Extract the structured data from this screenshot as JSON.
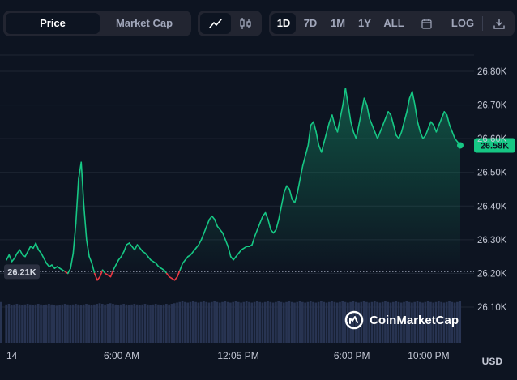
{
  "toolbar": {
    "metric_tabs": [
      {
        "label": "Price",
        "active": true
      },
      {
        "label": "Market Cap",
        "active": false
      }
    ],
    "chart_type_icons": [
      "line-chart-icon",
      "candlestick-icon"
    ],
    "ranges": [
      {
        "label": "1D",
        "active": true
      },
      {
        "label": "7D",
        "active": false
      },
      {
        "label": "1M",
        "active": false
      },
      {
        "label": "1Y",
        "active": false
      },
      {
        "label": "ALL",
        "active": false
      }
    ],
    "calendar_icon": "calendar-icon",
    "log_label": "LOG",
    "download_icon": "download-icon"
  },
  "currency": "USD",
  "watermark": "CoinMarketCap",
  "colors": {
    "background": "#0d1421",
    "up": "#16c784",
    "down": "#ea3943",
    "volume": "#283452"
  },
  "chart_data": {
    "type": "line",
    "title": "",
    "xlabel": "",
    "ylabel": "",
    "ylim": [
      26080,
      26840
    ],
    "y_ticks": [
      "26.80K",
      "26.70K",
      "26.60K",
      "26.50K",
      "26.40K",
      "26.30K",
      "26.20K",
      "26.10K"
    ],
    "y_tick_values": [
      26800,
      26700,
      26600,
      26500,
      26400,
      26300,
      26200,
      26100
    ],
    "x_ticks": [
      "14",
      "6:00 AM",
      "12:05 PM",
      "6:00 PM",
      "10:00 PM"
    ],
    "x_tick_hours": [
      0,
      6,
      12.08,
      18,
      22
    ],
    "x_range_hours": [
      0,
      23.65
    ],
    "baseline": {
      "label": "26.21K",
      "value": 26205
    },
    "last_price": {
      "label": "26.58K",
      "value": 26580
    },
    "grid": true,
    "series": [
      {
        "values": [
          26240,
          26255,
          26235,
          26245,
          26260,
          26270,
          26255,
          26250,
          26265,
          26280,
          26275,
          26290,
          26270,
          26260,
          26245,
          26230,
          26220,
          26225,
          26215,
          26220,
          26215,
          26210,
          26205,
          26200,
          26215,
          26260,
          26350,
          26480,
          26530,
          26400,
          26300,
          26250,
          26230,
          26200,
          26180,
          26190,
          26210,
          26200,
          26195,
          26190,
          26210,
          26225,
          26240,
          26250,
          26265,
          26285,
          26290,
          26280,
          26270,
          26285,
          26275,
          26265,
          26260,
          26250,
          26240,
          26235,
          26230,
          26220,
          26215,
          26210,
          26200,
          26190,
          26185,
          26180,
          26190,
          26210,
          26230,
          26240,
          26250,
          26255,
          26265,
          26275,
          26285,
          26300,
          26320,
          26340,
          26360,
          26370,
          26360,
          26340,
          26330,
          26320,
          26300,
          26280,
          26250,
          26240,
          26250,
          26260,
          26270,
          26275,
          26280,
          26280,
          26285,
          26310,
          26330,
          26350,
          26370,
          26380,
          26360,
          26330,
          26320,
          26330,
          26360,
          26400,
          26440,
          26460,
          26450,
          26420,
          26410,
          26440,
          26480,
          26520,
          26550,
          26580,
          26640,
          26650,
          26620,
          26580,
          26560,
          26590,
          26620,
          26650,
          26670,
          26640,
          26620,
          26660,
          26700,
          26750,
          26700,
          26650,
          26620,
          26600,
          26640,
          26680,
          26720,
          26700,
          26660,
          26640,
          26620,
          26600,
          26620,
          26640,
          26660,
          26680,
          26670,
          26640,
          26610,
          26600,
          26620,
          26650,
          26680,
          26720,
          26740,
          26700,
          26650,
          26620,
          26600,
          26610,
          26630,
          26650,
          26640,
          26620,
          26640,
          26660,
          26680,
          26670,
          26640,
          26620,
          26600,
          26590,
          26580
        ],
        "volume_level": [
          0.62,
          0.63,
          0.61,
          0.62,
          0.63,
          0.62,
          0.61,
          0.62,
          0.63,
          0.62,
          0.61,
          0.62,
          0.63,
          0.62,
          0.61,
          0.62,
          0.63,
          0.62,
          0.61,
          0.6,
          0.61,
          0.62,
          0.63,
          0.62,
          0.61,
          0.62,
          0.63,
          0.62,
          0.61,
          0.62,
          0.63,
          0.62,
          0.61,
          0.62,
          0.63,
          0.64,
          0.63,
          0.62,
          0.63,
          0.64,
          0.63,
          0.62,
          0.61,
          0.62,
          0.63,
          0.62,
          0.61,
          0.62,
          0.63,
          0.62,
          0.61,
          0.62,
          0.63,
          0.62,
          0.61,
          0.62,
          0.63,
          0.62,
          0.61,
          0.62,
          0.63,
          0.62,
          0.63,
          0.64,
          0.65,
          0.66,
          0.67,
          0.66,
          0.65,
          0.66,
          0.67,
          0.66,
          0.65,
          0.66,
          0.67,
          0.66,
          0.65,
          0.66,
          0.67,
          0.66,
          0.65,
          0.66,
          0.67,
          0.66,
          0.65,
          0.66,
          0.67,
          0.66,
          0.65,
          0.66,
          0.67,
          0.66,
          0.65,
          0.66,
          0.67,
          0.66,
          0.65,
          0.66,
          0.67,
          0.66,
          0.65,
          0.66,
          0.67,
          0.66,
          0.65,
          0.66,
          0.67,
          0.66,
          0.65,
          0.66,
          0.67,
          0.66,
          0.65,
          0.66,
          0.67,
          0.66,
          0.65,
          0.66,
          0.67,
          0.66,
          0.65,
          0.66,
          0.67,
          0.66,
          0.65,
          0.66,
          0.67,
          0.66,
          0.65,
          0.66,
          0.67,
          0.66,
          0.65,
          0.66,
          0.67,
          0.66,
          0.65,
          0.66,
          0.67,
          0.66,
          0.65,
          0.66,
          0.67,
          0.66,
          0.65,
          0.66,
          0.67,
          0.66,
          0.65,
          0.66,
          0.67,
          0.66,
          0.65,
          0.66,
          0.67,
          0.66,
          0.65,
          0.66,
          0.67,
          0.66,
          0.65,
          0.66,
          0.67,
          0.66,
          0.65,
          0.66,
          0.67,
          0.66,
          0.65,
          0.66,
          0.67,
          0.66,
          0.65
        ]
      }
    ]
  }
}
